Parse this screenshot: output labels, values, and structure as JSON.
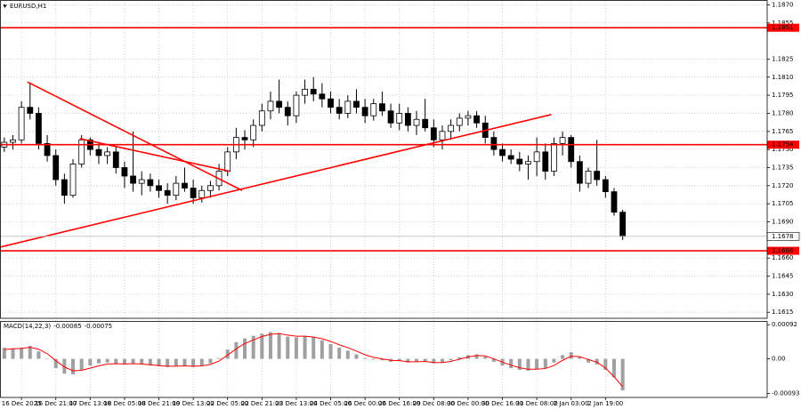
{
  "chart_data": [
    {
      "type": "candlestick",
      "title": "EURUSD,H1",
      "categories": [
        null,
        null,
        "16 Dec 2025",
        null,
        null,
        null,
        "16 Dec 21:00",
        null,
        null,
        null,
        "17 Dec 13:00",
        null,
        null,
        null,
        "18 Dec 05:00",
        null,
        null,
        null,
        "18 Dec 21:00",
        null,
        null,
        null,
        "19 Dec 13:00",
        null,
        null,
        null,
        "22 Dec 05:00",
        null,
        null,
        null,
        "22 Dec 21:00",
        null,
        null,
        null,
        "23 Dec 13:00",
        null,
        null,
        null,
        "24 Dec 05:00",
        null,
        null,
        null,
        "26 Dec 00:00",
        null,
        null,
        null,
        "26 Dec 16:00",
        null,
        null,
        null,
        "29 Dec 08:00",
        null,
        null,
        null,
        "30 Dec 00:00",
        null,
        null,
        null,
        "30 Dec 16:00",
        null,
        null,
        null,
        "31 Dec 08:00",
        null,
        null,
        null,
        "2 Jan 03:00",
        null,
        null,
        null,
        "2 Jan 19:00",
        null,
        null
      ],
      "open": [
        1.1752,
        1.1756,
        1.1758,
        1.1785,
        1.178,
        1.1755,
        1.1745,
        1.1725,
        1.1712,
        1.1738,
        1.1758,
        1.175,
        1.1745,
        1.1748,
        1.1735,
        1.1728,
        1.1722,
        1.1725,
        1.172,
        1.1716,
        1.1712,
        1.1722,
        1.1718,
        1.171,
        1.1716,
        1.172,
        1.1732,
        1.1748,
        1.176,
        1.1758,
        1.177,
        1.1782,
        1.179,
        1.1785,
        1.1778,
        1.1795,
        1.18,
        1.1796,
        1.1792,
        1.1785,
        1.178,
        1.179,
        1.1785,
        1.1778,
        1.1788,
        1.1782,
        1.1772,
        1.178,
        1.177,
        1.1775,
        1.1768,
        1.1758,
        1.1765,
        1.177,
        1.1776,
        1.1778,
        1.1772,
        1.176,
        1.175,
        1.1745,
        1.1742,
        1.1738,
        1.174,
        1.1748,
        1.1732,
        1.1755,
        1.176,
        1.174,
        1.1722,
        1.1732,
        1.1725,
        1.1715,
        1.1698
      ],
      "high": [
        1.176,
        1.1762,
        1.179,
        1.1805,
        1.1785,
        1.1762,
        1.175,
        1.173,
        1.1742,
        1.1762,
        1.176,
        1.1755,
        1.1752,
        1.1752,
        1.174,
        1.1765,
        1.1732,
        1.173,
        1.1725,
        1.1722,
        1.1728,
        1.1735,
        1.1725,
        1.172,
        1.1724,
        1.1738,
        1.1752,
        1.1768,
        1.1766,
        1.1775,
        1.1788,
        1.1798,
        1.1808,
        1.179,
        1.1798,
        1.1808,
        1.181,
        1.1805,
        1.1798,
        1.1792,
        1.1795,
        1.18,
        1.1792,
        1.1792,
        1.1798,
        1.1788,
        1.1788,
        1.1785,
        1.1782,
        1.1792,
        1.1775,
        1.177,
        1.1775,
        1.178,
        1.1782,
        1.1782,
        1.1778,
        1.1765,
        1.1755,
        1.175,
        1.1748,
        1.1745,
        1.176,
        1.1755,
        1.176,
        1.1765,
        1.1762,
        1.1745,
        1.1735,
        1.1758,
        1.1728,
        1.1718,
        1.17
      ],
      "low": [
        1.1748,
        1.175,
        1.1755,
        1.1775,
        1.175,
        1.174,
        1.172,
        1.1705,
        1.171,
        1.1735,
        1.1745,
        1.1738,
        1.1738,
        1.173,
        1.1718,
        1.1715,
        1.1712,
        1.1715,
        1.171,
        1.1705,
        1.1708,
        1.1715,
        1.1705,
        1.1706,
        1.171,
        1.1716,
        1.1728,
        1.1742,
        1.175,
        1.1752,
        1.1765,
        1.1775,
        1.178,
        1.177,
        1.1772,
        1.1788,
        1.179,
        1.1785,
        1.178,
        1.1775,
        1.1776,
        1.178,
        1.1772,
        1.1774,
        1.1778,
        1.1768,
        1.1766,
        1.1765,
        1.1762,
        1.1765,
        1.1752,
        1.175,
        1.1758,
        1.1765,
        1.177,
        1.1768,
        1.1755,
        1.1745,
        1.174,
        1.1738,
        1.1732,
        1.1725,
        1.1728,
        1.1725,
        1.1728,
        1.1745,
        1.1735,
        1.1715,
        1.1718,
        1.172,
        1.171,
        1.1695,
        1.1675
      ],
      "close": [
        1.1756,
        1.1758,
        1.1785,
        1.178,
        1.1755,
        1.1745,
        1.1725,
        1.1712,
        1.1738,
        1.1758,
        1.175,
        1.1745,
        1.1748,
        1.1735,
        1.1728,
        1.1722,
        1.1725,
        1.172,
        1.1716,
        1.1712,
        1.1722,
        1.1718,
        1.171,
        1.1716,
        1.172,
        1.1732,
        1.1748,
        1.176,
        1.1758,
        1.177,
        1.1782,
        1.179,
        1.1785,
        1.1778,
        1.1795,
        1.18,
        1.1796,
        1.1792,
        1.1785,
        1.178,
        1.179,
        1.1785,
        1.1778,
        1.1788,
        1.1782,
        1.1772,
        1.178,
        1.177,
        1.1775,
        1.1768,
        1.1758,
        1.1765,
        1.177,
        1.1776,
        1.1778,
        1.1772,
        1.176,
        1.175,
        1.1745,
        1.1742,
        1.1738,
        1.174,
        1.1748,
        1.1732,
        1.1755,
        1.176,
        1.174,
        1.1722,
        1.1732,
        1.1725,
        1.1715,
        1.1698,
        1.1678
      ],
      "ylim": [
        1.161,
        1.1874
      ],
      "yticks": [
        {
          "value": 1.187,
          "label": "1.1870"
        },
        {
          "value": 1.1855,
          "label": "1.1855"
        },
        {
          "value": 1.1825,
          "label": "1.1825"
        },
        {
          "value": 1.181,
          "label": "1.1810"
        },
        {
          "value": 1.1795,
          "label": "1.1795"
        },
        {
          "value": 1.178,
          "label": "1.1780"
        },
        {
          "value": 1.1765,
          "label": "1.1765"
        },
        {
          "value": 1.175,
          "label": "1.1750"
        },
        {
          "value": 1.1735,
          "label": "1.1735"
        },
        {
          "value": 1.172,
          "label": "1.1720"
        },
        {
          "value": 1.1705,
          "label": "1.1705"
        },
        {
          "value": 1.169,
          "label": "1.1690"
        },
        {
          "value": 1.166,
          "label": "1.1660"
        },
        {
          "value": 1.1645,
          "label": "1.1645"
        },
        {
          "value": 1.163,
          "label": "1.1630"
        },
        {
          "value": 1.1615,
          "label": "1.1615"
        }
      ],
      "grid": true,
      "levels": [
        1.1851,
        1.1754,
        1.1666
      ],
      "level_color": "#ff0000",
      "current_price": 1.1678,
      "trendlines": [
        {
          "x": [
            2.7,
            27.7
          ],
          "y": [
            1.1806,
            1.1716
          ]
        },
        {
          "x": [
            8.8,
            26.2
          ],
          "y": [
            1.1759,
            1.1732
          ]
        },
        {
          "x": [
            -0.5,
            63.7
          ],
          "y": [
            1.1669,
            1.1779
          ]
        }
      ],
      "trendline_color": "#ff0000"
    },
    {
      "type": "macd",
      "title": "MACD(14,22,3)",
      "readout": [
        -0.00085,
        -0.00075
      ],
      "histogram": [
        0.0003,
        0.00028,
        0.0003,
        0.00035,
        0.0002,
        0.0,
        -0.00025,
        -0.0004,
        -0.00042,
        -0.0003,
        -0.00018,
        -0.00012,
        -0.0001,
        -0.00012,
        -0.00015,
        -0.00012,
        -0.00015,
        -0.00018,
        -0.0002,
        -0.00022,
        -0.0002,
        -0.00018,
        -0.00022,
        -0.00018,
        -0.00012,
        2e-05,
        0.00025,
        0.00045,
        0.00055,
        0.00062,
        0.00068,
        0.00072,
        0.0007,
        0.0006,
        0.00058,
        0.00062,
        0.00058,
        0.0005,
        0.0004,
        0.0003,
        0.00022,
        0.00012,
        2e-05,
        -2e-05,
        -4e-05,
        -8e-05,
        -6e-05,
        -0.0001,
        -8e-05,
        -6e-05,
        -0.00012,
        -0.0001,
        -4e-05,
        4e-05,
        0.0001,
        0.00012,
        6e-05,
        -8e-05,
        -0.00018,
        -0.00025,
        -0.0003,
        -0.00032,
        -0.00028,
        -0.00025,
        -0.0001,
        0.0001,
        0.00018,
        5e-05,
        -0.0001,
        -0.00015,
        -0.0003,
        -0.0005,
        -0.00085
      ],
      "signal": [
        0.00025,
        0.00027,
        0.00028,
        0.00031,
        0.00026,
        0.00014,
        -5e-05,
        -0.00022,
        -0.00032,
        -0.00031,
        -0.00025,
        -0.00019,
        -0.00014,
        -0.00013,
        -0.00014,
        -0.00013,
        -0.00014,
        -0.00016,
        -0.00018,
        -0.0002,
        -0.0002,
        -0.00019,
        -0.0002,
        -0.00019,
        -0.00015,
        -6e-05,
        0.0001,
        0.00027,
        0.00041,
        0.00051,
        0.0006,
        0.00066,
        0.00068,
        0.00064,
        0.00061,
        0.00061,
        0.00059,
        0.00054,
        0.00047,
        0.00038,
        0.0003,
        0.00021,
        0.00011,
        4e-05,
        0.0,
        -4e-05,
        -5e-05,
        -8e-05,
        -8e-05,
        -7e-05,
        -0.0001,
        -0.0001,
        -7e-05,
        -1e-05,
        5e-05,
        9e-05,
        8e-05,
        0.0,
        -9e-05,
        -0.00017,
        -0.00024,
        -0.00028,
        -0.00028,
        -0.00026,
        -0.00018,
        -4e-05,
        7e-05,
        6e-05,
        -2e-05,
        -9e-05,
        -0.00025,
        -0.00048,
        -0.00075
      ],
      "histogram_color": "#a0a0a0",
      "signal_color": "#ff0000",
      "ylim": [
        -0.00104,
        0.00102
      ],
      "yticks": [
        0.00092,
        {
          "value": 0,
          "label": "0.00"
        },
        -0.00093
      ]
    }
  ]
}
